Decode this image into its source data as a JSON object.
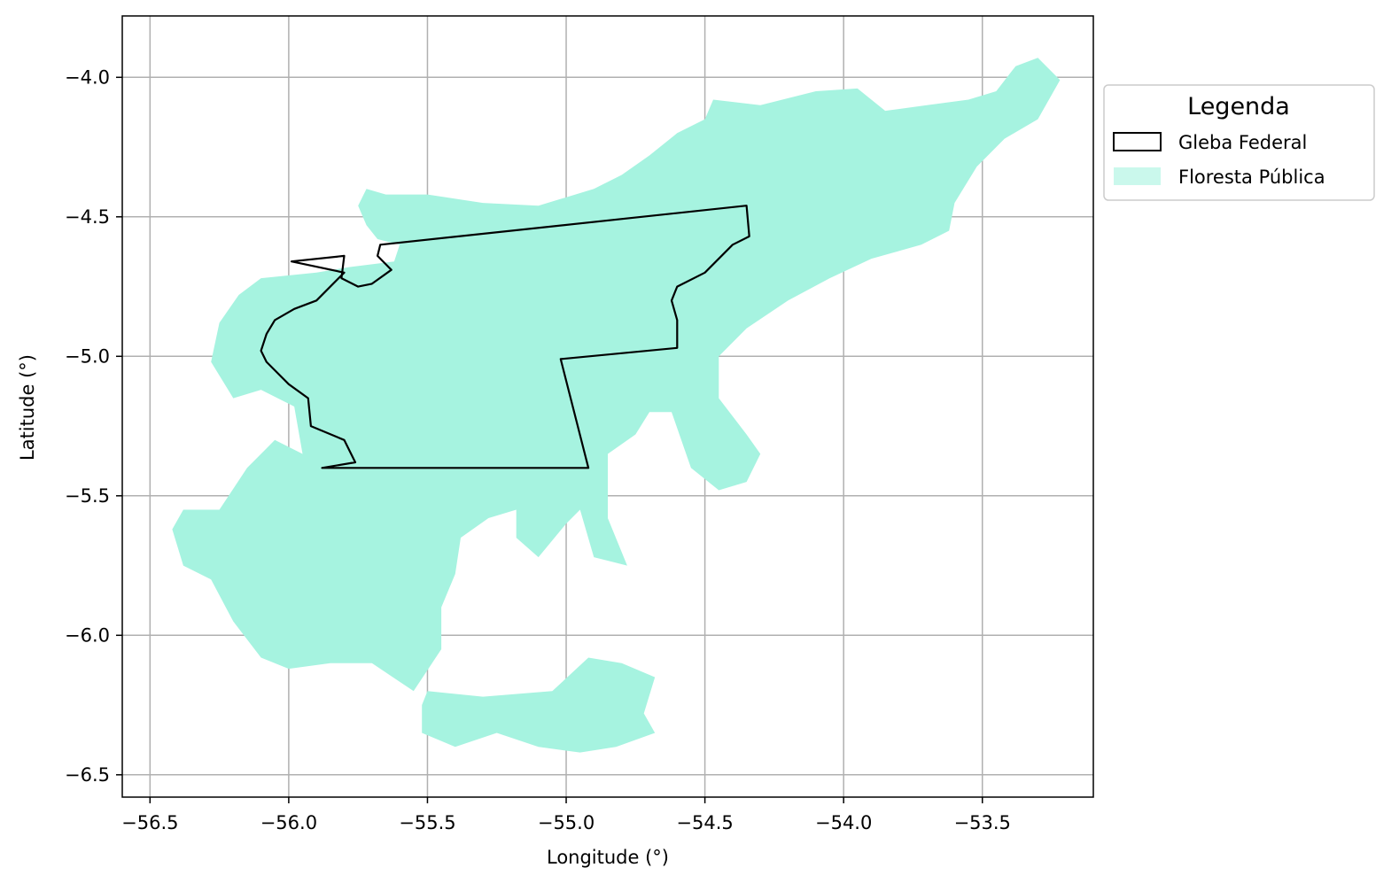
{
  "chart_data": {
    "type": "map",
    "xlabel": "Longitude (°)",
    "ylabel": "Latitude (°)",
    "xlim": [
      -56.6,
      -53.1
    ],
    "ylim": [
      -6.58,
      -3.78
    ],
    "xticks": [
      -56.5,
      -56.0,
      -55.5,
      -55.0,
      -54.5,
      -54.0,
      -53.5
    ],
    "xtick_labels": [
      "−56.5",
      "−56.0",
      "−55.5",
      "−55.0",
      "−54.5",
      "−54.0",
      "−53.5"
    ],
    "yticks": [
      -4.0,
      -4.5,
      -5.0,
      -5.5,
      -6.0,
      -6.5
    ],
    "ytick_labels": [
      "−4.0",
      "−4.5",
      "−5.0",
      "−5.5",
      "−6.0",
      "−6.5"
    ],
    "grid": true,
    "legend": {
      "title": "Legenda",
      "placement": "outside-upper-right",
      "entries": [
        {
          "label": "Gleba Federal",
          "style": "outline",
          "color": "#000000"
        },
        {
          "label": "Floresta Pública",
          "style": "fill",
          "color": "#a6f3e0"
        }
      ]
    },
    "layers": [
      {
        "name": "Floresta Pública",
        "color": "#a6f3e0",
        "polygons": [
          [
            [
              -56.1,
              -4.72
            ],
            [
              -55.9,
              -4.7
            ],
            [
              -55.78,
              -4.68
            ],
            [
              -55.62,
              -4.66
            ],
            [
              -55.6,
              -4.6
            ],
            [
              -55.68,
              -4.58
            ],
            [
              -55.72,
              -4.53
            ],
            [
              -55.75,
              -4.46
            ],
            [
              -55.72,
              -4.4
            ],
            [
              -55.65,
              -4.42
            ],
            [
              -55.5,
              -4.42
            ],
            [
              -55.3,
              -4.45
            ],
            [
              -55.1,
              -4.46
            ],
            [
              -54.9,
              -4.4
            ],
            [
              -54.8,
              -4.35
            ],
            [
              -54.7,
              -4.28
            ],
            [
              -54.6,
              -4.2
            ],
            [
              -54.5,
              -4.15
            ],
            [
              -54.47,
              -4.08
            ],
            [
              -54.3,
              -4.1
            ],
            [
              -54.1,
              -4.05
            ],
            [
              -53.95,
              -4.04
            ],
            [
              -53.85,
              -4.12
            ],
            [
              -53.7,
              -4.1
            ],
            [
              -53.55,
              -4.08
            ],
            [
              -53.45,
              -4.05
            ],
            [
              -53.38,
              -3.96
            ],
            [
              -53.3,
              -3.93
            ],
            [
              -53.22,
              -4.01
            ],
            [
              -53.3,
              -4.15
            ],
            [
              -53.42,
              -4.22
            ],
            [
              -53.52,
              -4.32
            ],
            [
              -53.6,
              -4.45
            ],
            [
              -53.62,
              -4.55
            ],
            [
              -53.72,
              -4.6
            ],
            [
              -53.9,
              -4.65
            ],
            [
              -54.05,
              -4.72
            ],
            [
              -54.2,
              -4.8
            ],
            [
              -54.35,
              -4.9
            ],
            [
              -54.45,
              -5.0
            ],
            [
              -54.45,
              -5.15
            ],
            [
              -54.35,
              -5.28
            ],
            [
              -54.3,
              -5.35
            ],
            [
              -54.35,
              -5.45
            ],
            [
              -54.45,
              -5.48
            ],
            [
              -54.55,
              -5.4
            ],
            [
              -54.62,
              -5.2
            ],
            [
              -54.7,
              -5.2
            ],
            [
              -54.75,
              -5.28
            ],
            [
              -54.85,
              -5.35
            ],
            [
              -54.85,
              -5.58
            ],
            [
              -54.78,
              -5.75
            ],
            [
              -54.9,
              -5.72
            ],
            [
              -54.95,
              -5.55
            ],
            [
              -55.0,
              -5.6
            ],
            [
              -55.1,
              -5.72
            ],
            [
              -55.18,
              -5.65
            ],
            [
              -55.18,
              -5.55
            ],
            [
              -55.28,
              -5.58
            ],
            [
              -55.38,
              -5.65
            ],
            [
              -55.4,
              -5.78
            ],
            [
              -55.45,
              -5.9
            ],
            [
              -55.45,
              -6.05
            ],
            [
              -55.55,
              -6.2
            ],
            [
              -55.7,
              -6.1
            ],
            [
              -55.85,
              -6.1
            ],
            [
              -56.0,
              -6.12
            ],
            [
              -56.1,
              -6.08
            ],
            [
              -56.2,
              -5.95
            ],
            [
              -56.28,
              -5.8
            ],
            [
              -56.38,
              -5.75
            ],
            [
              -56.42,
              -5.62
            ],
            [
              -56.38,
              -5.55
            ],
            [
              -56.25,
              -5.55
            ],
            [
              -56.15,
              -5.4
            ],
            [
              -56.05,
              -5.3
            ],
            [
              -55.95,
              -5.35
            ],
            [
              -55.98,
              -5.18
            ],
            [
              -56.1,
              -5.12
            ],
            [
              -56.2,
              -5.15
            ],
            [
              -56.28,
              -5.02
            ],
            [
              -56.25,
              -4.88
            ],
            [
              -56.18,
              -4.78
            ]
          ],
          [
            [
              -55.5,
              -6.2
            ],
            [
              -55.3,
              -6.22
            ],
            [
              -55.05,
              -6.2
            ],
            [
              -54.92,
              -6.08
            ],
            [
              -54.8,
              -6.1
            ],
            [
              -54.68,
              -6.15
            ],
            [
              -54.72,
              -6.28
            ],
            [
              -54.68,
              -6.35
            ],
            [
              -54.82,
              -6.4
            ],
            [
              -54.95,
              -6.42
            ],
            [
              -55.1,
              -6.4
            ],
            [
              -55.25,
              -6.35
            ],
            [
              -55.4,
              -6.4
            ],
            [
              -55.52,
              -6.35
            ],
            [
              -55.52,
              -6.25
            ]
          ]
        ]
      },
      {
        "name": "Gleba Federal",
        "color": "#000000",
        "polygons": [
          [
            [
              -55.99,
              -4.66
            ],
            [
              -55.8,
              -4.64
            ],
            [
              -55.81,
              -4.72
            ],
            [
              -55.75,
              -4.75
            ],
            [
              -55.7,
              -4.74
            ],
            [
              -55.63,
              -4.69
            ],
            [
              -55.68,
              -4.64
            ],
            [
              -55.67,
              -4.6
            ],
            [
              -54.35,
              -4.46
            ],
            [
              -54.34,
              -4.57
            ],
            [
              -54.4,
              -4.6
            ],
            [
              -54.5,
              -4.7
            ],
            [
              -54.6,
              -4.75
            ],
            [
              -54.62,
              -4.8
            ],
            [
              -54.6,
              -4.87
            ],
            [
              -54.6,
              -4.97
            ],
            [
              -55.02,
              -5.01
            ],
            [
              -54.92,
              -5.4
            ],
            [
              -55.88,
              -5.4
            ],
            [
              -55.76,
              -5.38
            ],
            [
              -55.8,
              -5.3
            ],
            [
              -55.92,
              -5.25
            ],
            [
              -55.93,
              -5.15
            ],
            [
              -56.0,
              -5.1
            ],
            [
              -56.08,
              -5.02
            ],
            [
              -56.1,
              -4.98
            ],
            [
              -56.08,
              -4.92
            ],
            [
              -56.05,
              -4.87
            ],
            [
              -55.98,
              -4.83
            ],
            [
              -55.9,
              -4.8
            ],
            [
              -55.8,
              -4.7
            ],
            [
              -55.99,
              -4.66
            ]
          ]
        ]
      }
    ]
  }
}
